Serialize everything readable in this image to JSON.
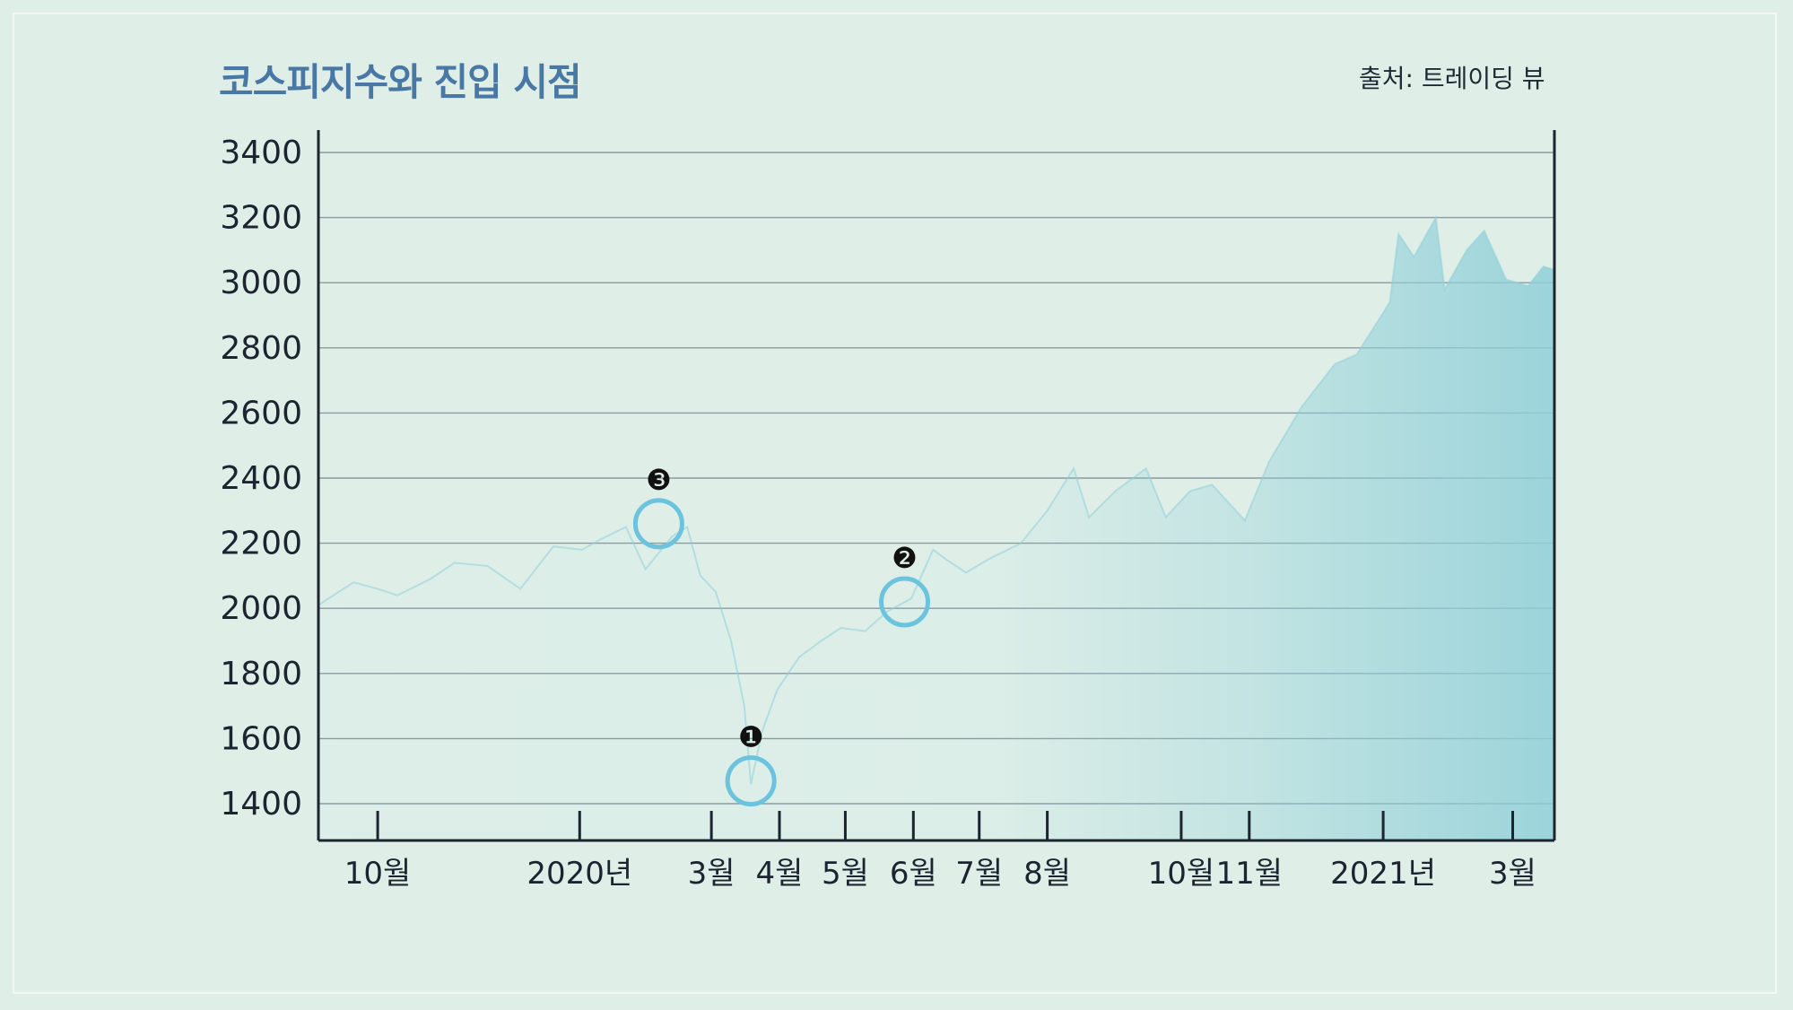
{
  "page": {
    "title": "코스피지수와 진입 시점",
    "source": "출처: 트레이딩 뷰"
  },
  "colors": {
    "background": "#dfefe8",
    "axis": "#1c2430",
    "grid": "#8a9aa0",
    "title": "#4a78a4",
    "series": "#8fcfd8",
    "marker_ring": "#6cc3dd",
    "marker_badge": "#111111"
  },
  "chart_data": {
    "type": "area",
    "title": "코스피지수와 진입 시점",
    "xlabel": "",
    "ylabel": "",
    "ylim": [
      1300,
      3450
    ],
    "grid": true,
    "y_ticks": [
      1400,
      1600,
      1800,
      2000,
      2200,
      2400,
      2600,
      2800,
      3000,
      3200,
      3400
    ],
    "x_ticks": [
      {
        "label": "10월",
        "x": "2019-10-01"
      },
      {
        "label": "2020년",
        "x": "2020-01-01"
      },
      {
        "label": "3월",
        "x": "2020-03-01"
      },
      {
        "label": "4월",
        "x": "2020-04-01"
      },
      {
        "label": "5월",
        "x": "2020-05-01"
      },
      {
        "label": "6월",
        "x": "2020-06-01"
      },
      {
        "label": "7월",
        "x": "2020-07-01"
      },
      {
        "label": "8월",
        "x": "2020-08-01"
      },
      {
        "label": "10월",
        "x": "2020-10-01"
      },
      {
        "label": "11월",
        "x": "2020-11-01"
      },
      {
        "label": "2021년",
        "x": "2021-01-01"
      },
      {
        "label": "3월",
        "x": "2021-03-01"
      }
    ],
    "x_range": [
      "2019-09-04",
      "2021-03-20"
    ],
    "series": [
      {
        "points": [
          [
            "2019-09-04",
            2010
          ],
          [
            "2019-09-20",
            2080
          ],
          [
            "2019-10-01",
            2060
          ],
          [
            "2019-10-10",
            2040
          ],
          [
            "2019-10-25",
            2090
          ],
          [
            "2019-11-05",
            2140
          ],
          [
            "2019-11-20",
            2130
          ],
          [
            "2019-12-05",
            2060
          ],
          [
            "2019-12-20",
            2190
          ],
          [
            "2020-01-02",
            2180
          ],
          [
            "2020-01-10",
            2210
          ],
          [
            "2020-01-22",
            2250
          ],
          [
            "2020-01-31",
            2120
          ],
          [
            "2020-02-12",
            2220
          ],
          [
            "2020-02-19",
            2250
          ],
          [
            "2020-02-25",
            2100
          ],
          [
            "2020-03-03",
            2050
          ],
          [
            "2020-03-10",
            1900
          ],
          [
            "2020-03-16",
            1700
          ],
          [
            "2020-03-19",
            1460
          ],
          [
            "2020-03-24",
            1620
          ],
          [
            "2020-03-31",
            1750
          ],
          [
            "2020-04-10",
            1850
          ],
          [
            "2020-04-20",
            1900
          ],
          [
            "2020-04-29",
            1940
          ],
          [
            "2020-05-10",
            1930
          ],
          [
            "2020-05-20",
            1990
          ],
          [
            "2020-05-31",
            2030
          ],
          [
            "2020-06-10",
            2180
          ],
          [
            "2020-06-16",
            2150
          ],
          [
            "2020-06-25",
            2110
          ],
          [
            "2020-07-05",
            2150
          ],
          [
            "2020-07-20",
            2200
          ],
          [
            "2020-08-01",
            2300
          ],
          [
            "2020-08-13",
            2430
          ],
          [
            "2020-08-20",
            2280
          ],
          [
            "2020-09-01",
            2360
          ],
          [
            "2020-09-15",
            2430
          ],
          [
            "2020-09-24",
            2280
          ],
          [
            "2020-10-05",
            2360
          ],
          [
            "2020-10-15",
            2380
          ],
          [
            "2020-10-30",
            2270
          ],
          [
            "2020-11-10",
            2450
          ],
          [
            "2020-11-25",
            2620
          ],
          [
            "2020-12-10",
            2750
          ],
          [
            "2020-12-20",
            2780
          ],
          [
            "2021-01-04",
            2940
          ],
          [
            "2021-01-08",
            3150
          ],
          [
            "2021-01-15",
            3080
          ],
          [
            "2021-01-25",
            3200
          ],
          [
            "2021-01-29",
            2980
          ],
          [
            "2021-02-08",
            3100
          ],
          [
            "2021-02-16",
            3160
          ],
          [
            "2021-02-26",
            3010
          ],
          [
            "2021-03-08",
            2990
          ],
          [
            "2021-03-15",
            3050
          ],
          [
            "2021-03-20",
            3040
          ]
        ]
      }
    ],
    "annotations": [
      {
        "label": "❶",
        "x": "2020-03-19",
        "y": 1470
      },
      {
        "label": "❷",
        "x": "2020-05-28",
        "y": 2020
      },
      {
        "label": "❸",
        "x": "2020-02-06",
        "y": 2260
      }
    ]
  }
}
